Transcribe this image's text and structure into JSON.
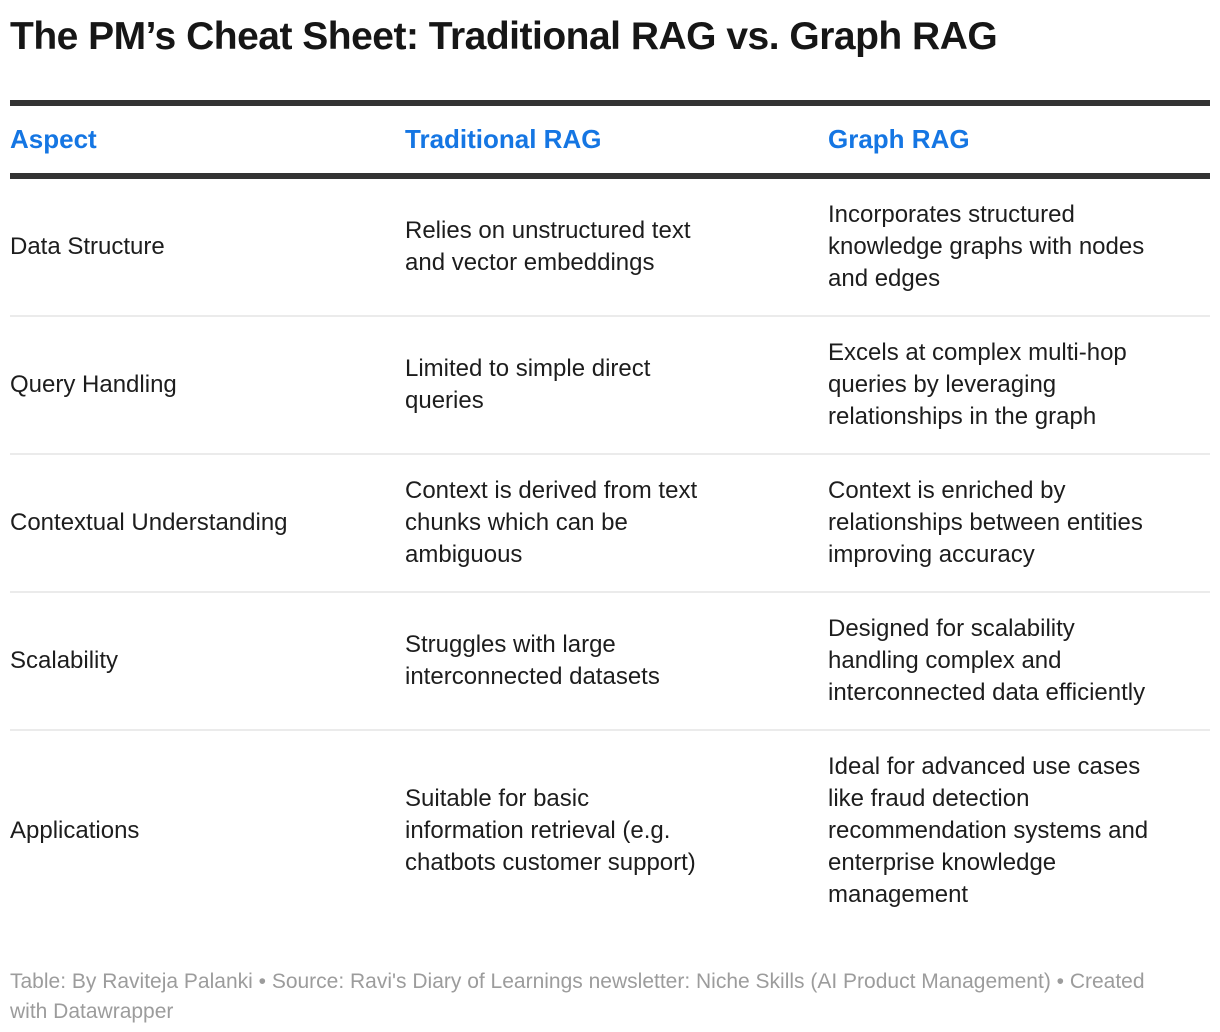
{
  "chart_data": {
    "type": "table",
    "title": "The PM’s Cheat Sheet: Traditional RAG vs. Graph RAG",
    "columns": [
      "Aspect",
      "Traditional RAG",
      "Graph RAG"
    ],
    "rows": [
      [
        "Data Structure",
        "Relies on unstructured text and vector embeddings",
        "Incorporates structured knowledge graphs with nodes and edges"
      ],
      [
        "Query Handling",
        "Limited to simple direct queries",
        "Excels at complex multi-hop queries by leveraging relationships in the graph"
      ],
      [
        "Contextual Understanding",
        "Context is derived from text chunks which can be ambiguous",
        "Context is enriched by relationships between entities improving accuracy"
      ],
      [
        "Scalability",
        "Struggles with large interconnected datasets",
        "Designed for scalability handling complex and interconnected data efficiently"
      ],
      [
        "Applications",
        "Suitable for basic information retrieval (e.g. chatbots customer support)",
        "Ideal for advanced use cases like fraud detection recommendation systems and enterprise knowledge management"
      ]
    ],
    "footnote": "Table: By Raviteja Palanki • Source: Ravi's Diary of Learnings newsletter: Niche Skills (AI Product Management) • Created with Datawrapper",
    "layout_hints": {
      "header_text_color": "#1576e3",
      "rule_dark": "#333333",
      "rule_light": "#ebebeb",
      "body_text": "#1d1d1d",
      "footer_text": "#9c9c9c",
      "grid": "horizontal-rules-only"
    }
  },
  "display": {
    "rows": [
      {
        "aspect": "Data Structure",
        "traditional": "Relies on unstructured text\nand vector embeddings",
        "graph": "Incorporates structured\nknowledge graphs with nodes\nand edges"
      },
      {
        "aspect": "Query Handling",
        "traditional": "Limited to simple direct\nqueries",
        "graph": "Excels at complex multi-hop\nqueries by leveraging\nrelationships in the graph"
      },
      {
        "aspect": "Contextual Understanding",
        "traditional": "Context is derived from text\nchunks which can be\nambiguous",
        "graph": "Context is enriched by\nrelationships between entities\nimproving accuracy"
      },
      {
        "aspect": "Scalability",
        "traditional": "Struggles with large\ninterconnected datasets",
        "graph": "Designed for scalability\nhandling complex and\ninterconnected data efficiently"
      },
      {
        "aspect": "Applications",
        "traditional": "Suitable for basic\ninformation retrieval (e.g.\nchatbots customer support)",
        "graph": "Ideal for advanced use cases\nlike fraud detection\nrecommendation systems and\nenterprise knowledge\nmanagement"
      }
    ],
    "footer": "Table: By Raviteja Palanki  • Source: Ravi's Diary of Learnings newsletter: Niche Skills (AI Product Management) • Created\nwith Datawrapper"
  }
}
